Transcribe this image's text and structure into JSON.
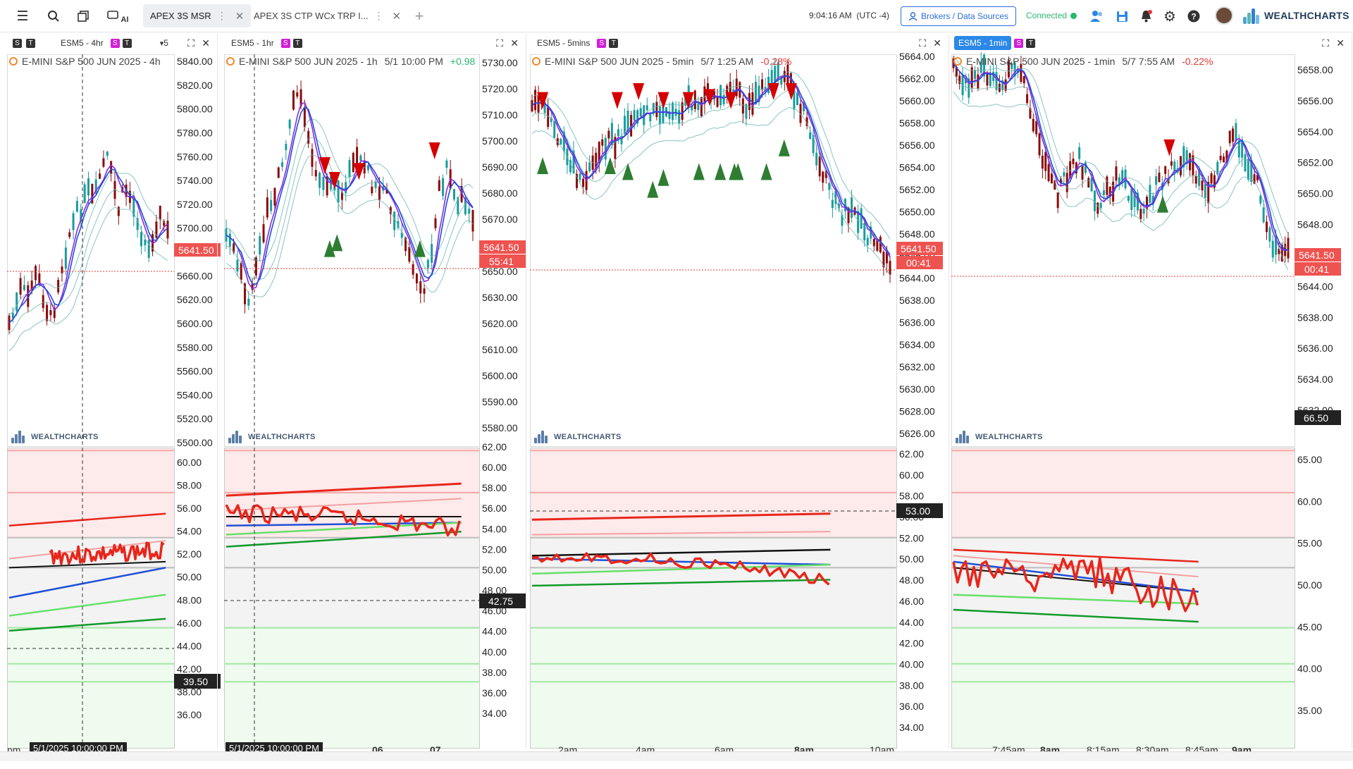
{
  "topbar": {
    "tabs": [
      {
        "label": "APEX 3S MSR",
        "active": true
      },
      {
        "label": "APEX 3S CTP WCx TRP I...",
        "active": false
      }
    ],
    "clock": "9:04:16 AM",
    "timezone": "(UTC -4)",
    "brokers_label": "Brokers / Data Sources",
    "connection_status": "Connected",
    "brand": "WEALTHCHARTS",
    "ai_label": "AI"
  },
  "watermark": "WEALTHCHARTS",
  "colors": {
    "bull": "#1a9c9c",
    "bear": "#8b0a0a",
    "ema_purple": "#8a2be2",
    "ema_blue": "#1f4fd6",
    "band": "#6db5b1",
    "price_tag": "#ef5350",
    "rsi_red": "#e8261b",
    "accent": "#2b88e8"
  },
  "panels": [
    {
      "header_symbol": "ESM5 - 4hr",
      "header_extra": "5",
      "selected": false,
      "legend_title": "E-MINI S&P 500 JUN 2025 - 4h",
      "legend_time": "",
      "legend_change": "",
      "price_ticks": [
        "5840.00",
        "5820.00",
        "5800.00",
        "5780.00",
        "5760.00",
        "5740.00",
        "5720.00",
        "5700.00",
        "5680.00",
        "5660.00",
        "5620.00",
        "5600.00",
        "5580.00",
        "5560.00",
        "5540.00",
        "5520.00",
        "5500.00"
      ],
      "price_tag": "5641.50",
      "countdown": "",
      "osc_ticks": [
        "60.00",
        "58.00",
        "56.00",
        "54.00",
        "52.00",
        "50.00",
        "48.00",
        "46.00",
        "44.00",
        "42.00",
        "38.00",
        "36.00"
      ],
      "osc_tag": "39.50",
      "date_box": "5/1/2025 10:00:00 PM",
      "x_labels": [
        "pm"
      ]
    },
    {
      "header_symbol": "ESM5 - 1hr",
      "header_extra": "",
      "selected": false,
      "legend_title": "E-MINI S&P 500 JUN 2025 - 1h",
      "legend_time": "5/1 10:00 PM",
      "legend_change": "+0.98",
      "price_ticks": [
        "5730.00",
        "5720.00",
        "5710.00",
        "5700.00",
        "5690.00",
        "5680.00",
        "5670.00",
        "5660.00",
        "5650.00",
        "5630.00",
        "5620.00",
        "5610.00",
        "5600.00",
        "5590.00",
        "5580.00"
      ],
      "price_tag": "5641.50",
      "countdown": "55:41",
      "osc_ticks": [
        "62.00",
        "60.00",
        "58.00",
        "56.00",
        "54.00",
        "52.00",
        "50.00",
        "48.00",
        "46.00",
        "44.00",
        "40.00",
        "38.00",
        "36.00",
        "34.00"
      ],
      "osc_tag": "42.75",
      "date_box": "5/1/2025 10:00:00 PM",
      "x_labels": [
        "06",
        "07"
      ]
    },
    {
      "header_symbol": "ESM5 - 5mins",
      "header_extra": "",
      "selected": false,
      "legend_title": "E-MINI S&P 500 JUN 2025 - 5min",
      "legend_time": "5/7 1:25 AM",
      "legend_change": "-0.28%",
      "price_ticks": [
        "5664.00",
        "5662.00",
        "5660.00",
        "5658.00",
        "5656.00",
        "5654.00",
        "5652.00",
        "5650.00",
        "5648.00",
        "5646.00",
        "5644.00",
        "5638.00",
        "5636.00",
        "5634.00",
        "5632.00",
        "5630.00",
        "5628.00",
        "5626.00"
      ],
      "price_tag": "5641.50",
      "countdown": "00:41",
      "osc_ticks": [
        "62.00",
        "60.00",
        "58.00",
        "56.00",
        "52.00",
        "50.00",
        "48.00",
        "46.00",
        "44.00",
        "42.00",
        "40.00",
        "38.00",
        "36.00",
        "34.00"
      ],
      "osc_tag": "53.00",
      "date_box": "",
      "x_labels": [
        "2am",
        "4am",
        "6am",
        "8am",
        "10am"
      ]
    },
    {
      "header_symbol": "ESM5 - 1min",
      "header_extra": "",
      "selected": true,
      "legend_title": "E-MINI S&P 500 JUN 2025 - 1min",
      "legend_time": "5/7 7:55 AM",
      "legend_change": "-0.22%",
      "price_ticks": [
        "5658.00",
        "5656.00",
        "5654.00",
        "5652.00",
        "5650.00",
        "5648.00",
        "5646.00",
        "5644.00",
        "5638.00",
        "5636.00",
        "5634.00",
        "5632.00"
      ],
      "price_tag": "5641.50",
      "countdown": "00:41",
      "osc_ticks": [
        "65.00",
        "60.00",
        "55.00",
        "50.00",
        "45.00",
        "40.00",
        "35.00"
      ],
      "osc_tag": "66.50",
      "date_box": "",
      "x_labels": [
        "7:45am",
        "8am",
        "8:15am",
        "8:30am",
        "8:45am",
        "9am"
      ]
    }
  ]
}
